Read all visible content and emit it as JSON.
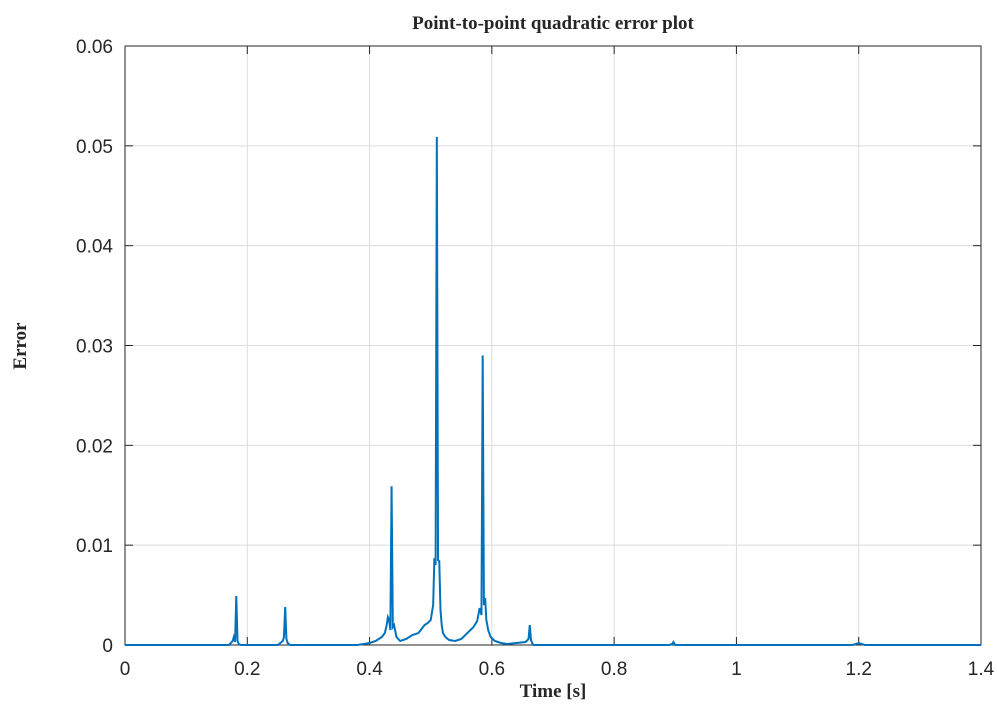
{
  "chart_data": {
    "type": "line",
    "title": "Point-to-point quadratic error plot",
    "xlabel": "Time [s]",
    "ylabel": "Error",
    "xlim": [
      0,
      1.4
    ],
    "ylim": [
      0,
      0.06
    ],
    "grid": true,
    "line_color": "#0072BD",
    "x_ticks": [
      0,
      0.2,
      0.4,
      0.6,
      0.8,
      1.0,
      1.2,
      1.4
    ],
    "x_tick_labels": [
      "0",
      "0.2",
      "0.4",
      "0.6",
      "0.8",
      "1",
      "1.2",
      "1.4"
    ],
    "y_ticks": [
      0,
      0.01,
      0.02,
      0.03,
      0.04,
      0.05,
      0.06
    ],
    "y_tick_labels": [
      "0",
      "0.01",
      "0.02",
      "0.03",
      "0.04",
      "0.05",
      "0.06"
    ],
    "series": [
      {
        "x": [
          0,
          0.17,
          0.176,
          0.178,
          0.18,
          0.182,
          0.184,
          0.186,
          0.19,
          0.25,
          0.258,
          0.26,
          0.262,
          0.264,
          0.266,
          0.27,
          0.38,
          0.4,
          0.41,
          0.42,
          0.425,
          0.428,
          0.43,
          0.432,
          0.434,
          0.436,
          0.438,
          0.44,
          0.444,
          0.45,
          0.46,
          0.47,
          0.48,
          0.49,
          0.495,
          0.5,
          0.504,
          0.506,
          0.508,
          0.51,
          0.512,
          0.514,
          0.516,
          0.518,
          0.52,
          0.524,
          0.53,
          0.54,
          0.55,
          0.56,
          0.57,
          0.576,
          0.58,
          0.583,
          0.585,
          0.587,
          0.589,
          0.591,
          0.594,
          0.598,
          0.605,
          0.615,
          0.625,
          0.64,
          0.655,
          0.66,
          0.662,
          0.664,
          0.666,
          0.668,
          0.675,
          0.89,
          0.895,
          0.897,
          0.9,
          1.19,
          1.2,
          1.205,
          1.21,
          1.4
        ],
        "y": [
          0,
          0,
          0.0004,
          0.0008,
          0.0003,
          0.0049,
          0.0004,
          0.0001,
          0,
          0,
          0.0004,
          0.0008,
          0.0038,
          0.0006,
          0.0002,
          0,
          0,
          0.0002,
          0.0004,
          0.0008,
          0.0012,
          0.002,
          0.0028,
          0.0025,
          0.0015,
          0.0159,
          0.0018,
          0.002,
          0.0008,
          0.0004,
          0.0006,
          0.001,
          0.0012,
          0.002,
          0.0022,
          0.0025,
          0.004,
          0.0087,
          0.008,
          0.0509,
          0.0085,
          0.0084,
          0.0035,
          0.002,
          0.0012,
          0.0008,
          0.0005,
          0.0004,
          0.0006,
          0.0012,
          0.0018,
          0.0024,
          0.0037,
          0.003,
          0.029,
          0.004,
          0.0047,
          0.0025,
          0.0015,
          0.0008,
          0.0004,
          0.0002,
          0.0001,
          0.0002,
          0.0003,
          0.0006,
          0.002,
          0.0005,
          0.0002,
          0,
          0,
          0,
          0.0001,
          0.0003,
          0,
          0,
          0.0002,
          0.0001,
          0,
          0
        ]
      }
    ]
  }
}
